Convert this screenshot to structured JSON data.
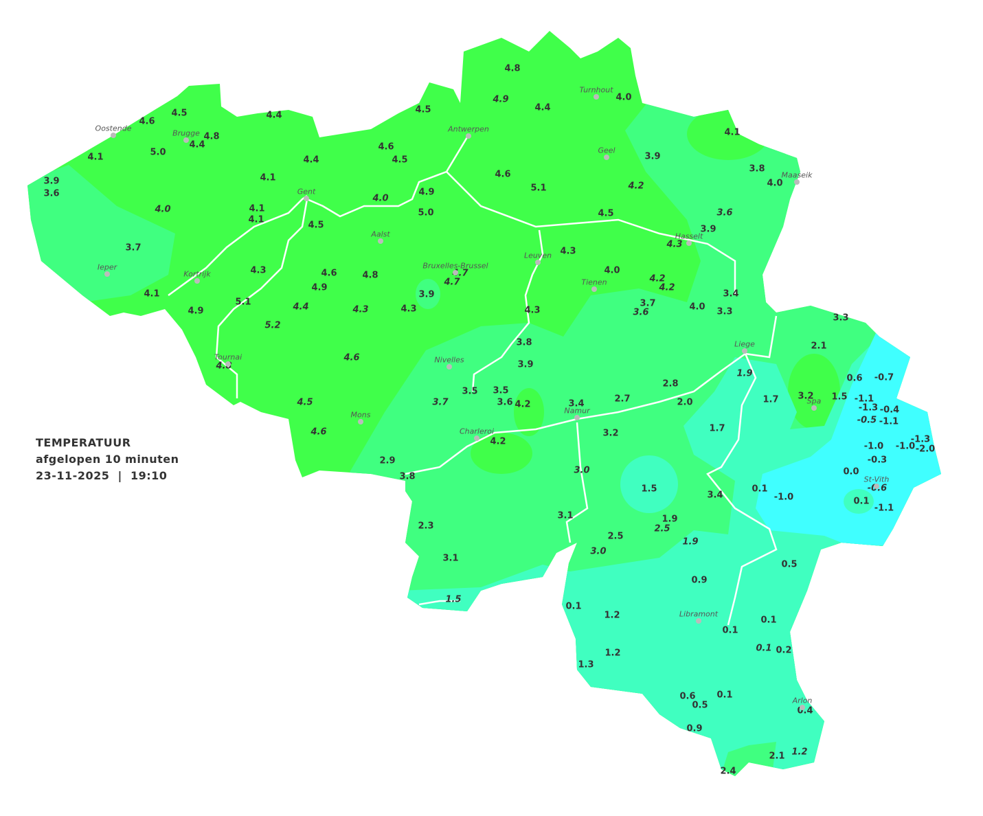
{
  "legend": {
    "title": "TEMPERATUUR",
    "subtitle": "afgelopen 10 minuten",
    "datetime": "23-11-2025  |  19:10"
  },
  "colors": {
    "above_4": "#40ff4a",
    "3_to_4": "#40ff80",
    "0_to_2": "#40ffc0",
    "below_0": "#40ffff",
    "rivers": "#ffffff",
    "text": "#333333"
  },
  "cities": [
    "Oostende",
    "Brugge",
    "Antwerpen",
    "Turnhout",
    "Geel",
    "Maaseik",
    "Gent",
    "Aalst",
    "Hasselt",
    "Ieper",
    "Kortrijk",
    "Leuven",
    "Bruxelles-Brussel",
    "Tienen",
    "Liege",
    "Tournai",
    "Nivelles",
    "Spa",
    "Mons",
    "Namur",
    "Charleroi",
    "St-Vith",
    "Libramont",
    "Arlon"
  ],
  "readings": [
    {
      "v": "4.8"
    },
    {
      "v": "4.9",
      "i": true
    },
    {
      "v": "4.4"
    },
    {
      "v": "4.0"
    },
    {
      "v": "4.5"
    },
    {
      "v": "4.5"
    },
    {
      "v": "4.6"
    },
    {
      "v": "4.4"
    },
    {
      "v": "4.8"
    },
    {
      "v": "4.4"
    },
    {
      "v": "5.0"
    },
    {
      "v": "4.1"
    },
    {
      "v": "4.6"
    },
    {
      "v": "4.5"
    },
    {
      "v": "4.4"
    },
    {
      "v": "4.1"
    },
    {
      "v": "3.9"
    },
    {
      "v": "3.8"
    },
    {
      "v": "4.0"
    },
    {
      "v": "4.6"
    },
    {
      "v": "5.1"
    },
    {
      "v": "4.2",
      "i": true
    },
    {
      "v": "3.9"
    },
    {
      "v": "3.6"
    },
    {
      "v": "4.1"
    },
    {
      "v": "4.9"
    },
    {
      "v": "4.0",
      "i": true
    },
    {
      "v": "4.0",
      "i": true
    },
    {
      "v": "4.1"
    },
    {
      "v": "4.1"
    },
    {
      "v": "5.0"
    },
    {
      "v": "4.5"
    },
    {
      "v": "3.6",
      "i": true
    },
    {
      "v": "3.9"
    },
    {
      "v": "4.5"
    },
    {
      "v": "3.7"
    },
    {
      "v": "4.3"
    },
    {
      "v": "4.3",
      "i": true
    },
    {
      "v": "4.3"
    },
    {
      "v": "4.6"
    },
    {
      "v": "4.8"
    },
    {
      "v": "4.7",
      "i": true
    },
    {
      "v": "4.7",
      "i": true
    },
    {
      "v": "4.9"
    },
    {
      "v": "4.0"
    },
    {
      "v": "4.2",
      "i": true
    },
    {
      "v": "4.2",
      "i": true
    },
    {
      "v": "4.1"
    },
    {
      "v": "3.9"
    },
    {
      "v": "3.4"
    },
    {
      "v": "5.1"
    },
    {
      "v": "4.4",
      "i": true
    },
    {
      "v": "4.3",
      "i": true
    },
    {
      "v": "4.3"
    },
    {
      "v": "4.3"
    },
    {
      "v": "3.7"
    },
    {
      "v": "3.6",
      "i": true
    },
    {
      "v": "4.0"
    },
    {
      "v": "3.3"
    },
    {
      "v": "4.9"
    },
    {
      "v": "5.2",
      "i": true
    },
    {
      "v": "3.3"
    },
    {
      "v": "3.8"
    },
    {
      "v": "2.1"
    },
    {
      "v": "4.6",
      "i": true
    },
    {
      "v": "3.9"
    },
    {
      "v": "4.8",
      "i": true
    },
    {
      "v": "1.9",
      "i": true
    },
    {
      "v": "0.6"
    },
    {
      "v": "-0.7"
    },
    {
      "v": "2.8"
    },
    {
      "v": "3.5"
    },
    {
      "v": "3.5"
    },
    {
      "v": "1.7"
    },
    {
      "v": "3.2"
    },
    {
      "v": "1.5"
    },
    {
      "v": "-1.1"
    },
    {
      "v": "3.6"
    },
    {
      "v": "4.2"
    },
    {
      "v": "3.7",
      "i": true
    },
    {
      "v": "4.5",
      "i": true
    },
    {
      "v": "2.7"
    },
    {
      "v": "2.0"
    },
    {
      "v": "3.4"
    },
    {
      "v": "-1.3"
    },
    {
      "v": "-0.4"
    },
    {
      "v": "-0.5",
      "i": true
    },
    {
      "v": "-1.1"
    },
    {
      "v": "4.6",
      "i": true
    },
    {
      "v": "1.7"
    },
    {
      "v": "3.2"
    },
    {
      "v": "-1.3"
    },
    {
      "v": "-1.0"
    },
    {
      "v": "-1.0"
    },
    {
      "v": "-2.0"
    },
    {
      "v": "4.2"
    },
    {
      "v": "-0.3"
    },
    {
      "v": "2.9"
    },
    {
      "v": "3.0",
      "i": true
    },
    {
      "v": "0.0"
    },
    {
      "v": "3.8"
    },
    {
      "v": "1.5"
    },
    {
      "v": "3.4"
    },
    {
      "v": "0.1"
    },
    {
      "v": "-1.0"
    },
    {
      "v": "-0.6",
      "i": true
    },
    {
      "v": "0.1"
    },
    {
      "v": "-1.1"
    },
    {
      "v": "3.1"
    },
    {
      "v": "1.9"
    },
    {
      "v": "2.5",
      "i": true
    },
    {
      "v": "2.3"
    },
    {
      "v": "2.5"
    },
    {
      "v": "1.9",
      "i": true
    },
    {
      "v": "3.0",
      "i": true
    },
    {
      "v": "3.1"
    },
    {
      "v": "0.5"
    },
    {
      "v": "0.9"
    },
    {
      "v": "1.5",
      "i": true
    },
    {
      "v": "0.1"
    },
    {
      "v": "1.2"
    },
    {
      "v": "0.1"
    },
    {
      "v": "0.1"
    },
    {
      "v": "0.1",
      "i": true
    },
    {
      "v": "0.2"
    },
    {
      "v": "1.2"
    },
    {
      "v": "1.3"
    },
    {
      "v": "0.6"
    },
    {
      "v": "0.1"
    },
    {
      "v": "0.5"
    },
    {
      "v": "0.4"
    },
    {
      "v": "0.9"
    },
    {
      "v": "2.1"
    },
    {
      "v": "1.2",
      "i": true
    },
    {
      "v": "2.4"
    }
  ]
}
